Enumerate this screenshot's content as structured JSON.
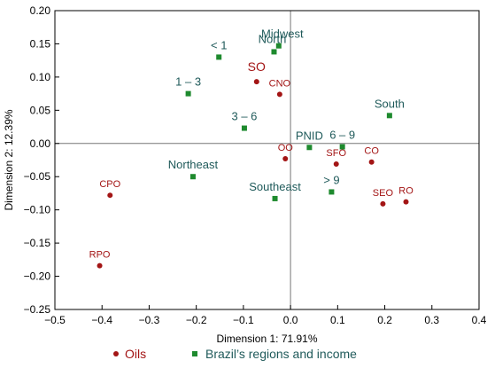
{
  "chart_data": {
    "type": "scatter",
    "xlabel": "Dimension 1: 71.91%",
    "ylabel": "Dimension 2: 12.39%",
    "xlim": [
      -0.5,
      0.4
    ],
    "ylim": [
      -0.25,
      0.2
    ],
    "xticks": [
      "−0.5",
      "−0.4",
      "−0.3",
      "−0.2",
      "−0.1",
      "0.0",
      "0.1",
      "0.2",
      "0.3",
      "0.4"
    ],
    "yticks": [
      "0.20",
      "0.15",
      "0.10",
      "0.05",
      "0.00",
      "−0.05",
      "−0.10",
      "−0.15",
      "−0.20",
      "−0.25"
    ],
    "grid": false,
    "reference_lines": {
      "x": 0,
      "y": 0
    },
    "legend_position": "bottom",
    "series": [
      {
        "name": "Oils",
        "marker": "circle",
        "color": "#a31515",
        "points": [
          {
            "label": "SO",
            "x": -0.072,
            "y": 0.093
          },
          {
            "label": "CNO",
            "x": -0.023,
            "y": 0.074
          },
          {
            "label": "OO",
            "x": -0.011,
            "y": -0.023
          },
          {
            "label": "SFO",
            "x": 0.097,
            "y": -0.031
          },
          {
            "label": "CO",
            "x": 0.172,
            "y": -0.028
          },
          {
            "label": "SEO",
            "x": 0.196,
            "y": -0.091
          },
          {
            "label": "RO",
            "x": 0.245,
            "y": -0.088
          },
          {
            "label": "CPO",
            "x": -0.383,
            "y": -0.078
          },
          {
            "label": "RPO",
            "x": -0.405,
            "y": -0.184
          }
        ]
      },
      {
        "name": "Brazil’s regions and income",
        "marker": "square",
        "color": "#1e8a2e",
        "label_color": "#1f5a5a",
        "points": [
          {
            "label": "Midwest",
            "x": -0.025,
            "y": 0.147
          },
          {
            "label": "North",
            "x": -0.035,
            "y": 0.138
          },
          {
            "label": "< 1",
            "x": -0.152,
            "y": 0.13
          },
          {
            "label": "1 – 3",
            "x": -0.217,
            "y": 0.075
          },
          {
            "label": "3 – 6",
            "x": -0.098,
            "y": 0.023
          },
          {
            "label": "South",
            "x": 0.21,
            "y": 0.042
          },
          {
            "label": "PNID",
            "x": 0.04,
            "y": -0.006
          },
          {
            "label": "6 – 9",
            "x": 0.11,
            "y": -0.005
          },
          {
            "label": "Northeast",
            "x": -0.207,
            "y": -0.05
          },
          {
            "label": "> 9",
            "x": 0.087,
            "y": -0.073
          },
          {
            "label": "Southeast",
            "x": -0.033,
            "y": -0.083
          }
        ]
      }
    ]
  }
}
